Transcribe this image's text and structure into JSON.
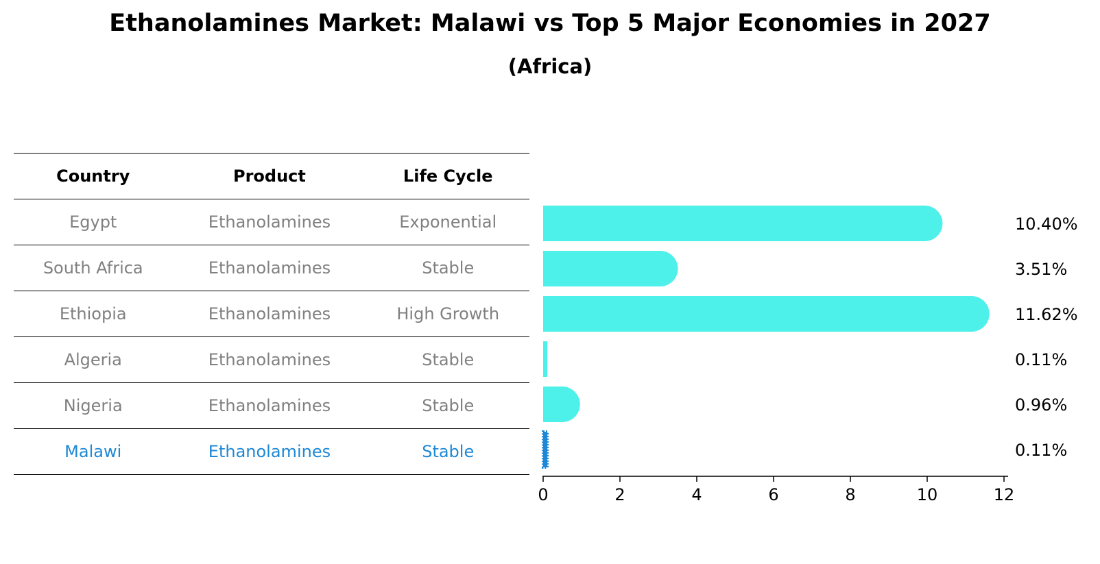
{
  "title": "Ethanolamines Market: Malawi vs Top 5 Major Economies in 2027",
  "subtitle": "(Africa)",
  "colors": {
    "bar": "#4ef0ea",
    "highlight": "#1e88d6",
    "muted": "#808080"
  },
  "table": {
    "headers": [
      "Country",
      "Product",
      "Life Cycle"
    ],
    "rows": [
      {
        "country": "Egypt",
        "product": "Ethanolamines",
        "life_cycle": "Exponential",
        "highlight": false
      },
      {
        "country": "South Africa",
        "product": "Ethanolamines",
        "life_cycle": "Stable",
        "highlight": false
      },
      {
        "country": "Ethiopia",
        "product": "Ethanolamines",
        "life_cycle": "High Growth",
        "highlight": false
      },
      {
        "country": "Algeria",
        "product": "Ethanolamines",
        "life_cycle": "Stable",
        "highlight": false
      },
      {
        "country": "Nigeria",
        "product": "Ethanolamines",
        "life_cycle": "Stable",
        "highlight": false
      },
      {
        "country": "Malawi",
        "product": "Ethanolamines",
        "life_cycle": "Stable",
        "highlight": true
      }
    ]
  },
  "chart_data": {
    "type": "bar",
    "orientation": "horizontal",
    "categories": [
      "Egypt",
      "South Africa",
      "Ethiopia",
      "Algeria",
      "Nigeria",
      "Malawi"
    ],
    "values": [
      10.4,
      3.51,
      11.62,
      0.11,
      0.96,
      0.11
    ],
    "value_labels": [
      "10.40%",
      "3.51%",
      "11.62%",
      "0.11%",
      "0.96%",
      "0.11%"
    ],
    "highlight": "Malawi",
    "xlim": [
      0,
      12
    ],
    "xticks": [
      0,
      2,
      4,
      6,
      8,
      10,
      12
    ],
    "xlabel": "",
    "ylabel": "",
    "grid": false
  }
}
